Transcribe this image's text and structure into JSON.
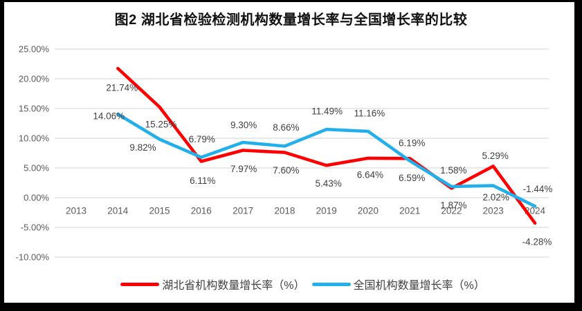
{
  "chart_data": {
    "type": "line",
    "title": "图2  湖北省检验检测机构数量增长率与全国增长率的比较",
    "categories": [
      "2013",
      "2014",
      "2015",
      "2016",
      "2017",
      "2018",
      "2019",
      "2020",
      "2021",
      "2022",
      "2023",
      "2024"
    ],
    "series": [
      {
        "name": "湖北省机构数量增长率（%）",
        "color": "#FE0000",
        "values": [
          null,
          21.74,
          15.25,
          6.11,
          7.97,
          7.6,
          5.43,
          6.64,
          6.59,
          1.58,
          5.29,
          -4.28
        ],
        "data_labels": [
          "",
          "21.74%",
          "15.25%",
          "6.11%",
          "7.97%",
          "7.60%",
          "5.43%",
          "6.64%",
          "6.59%",
          "1.58%",
          "5.29%",
          "-4.28%"
        ],
        "label_offsets": [
          [
            0,
            0
          ],
          [
            6,
            28
          ],
          [
            2,
            25
          ],
          [
            2,
            28
          ],
          [
            1,
            27
          ],
          [
            2,
            26
          ],
          [
            3,
            26
          ],
          [
            3,
            24
          ],
          [
            3,
            28
          ],
          [
            3,
            -26
          ],
          [
            3,
            -15
          ],
          [
            3,
            27
          ]
        ]
      },
      {
        "name": "全国机构数量增长率（%）",
        "color": "#23B0EA",
        "values": [
          null,
          14.06,
          9.82,
          6.79,
          9.3,
          8.66,
          11.49,
          11.16,
          6.19,
          1.87,
          2.02,
          -1.44
        ],
        "data_labels": [
          "",
          "14.06%",
          "9.82%",
          "6.79%",
          "9.30%",
          "8.66%",
          "11.49%",
          "11.16%",
          "6.19%",
          "1.87%",
          "2.02%",
          "-1.44%"
        ],
        "label_offsets": [
          [
            0,
            0
          ],
          [
            -13,
            3
          ],
          [
            -24,
            12
          ],
          [
            1,
            -26
          ],
          [
            1,
            -25
          ],
          [
            2,
            -27
          ],
          [
            1,
            -26
          ],
          [
            2,
            -26
          ],
          [
            3,
            -26
          ],
          [
            3,
            27
          ],
          [
            4,
            17
          ],
          [
            4,
            -25
          ]
        ]
      }
    ],
    "xlabel": "",
    "ylabel": "",
    "ylim": [
      -10,
      25
    ],
    "ytick_step": 5,
    "ytick_labels": [
      "25.00%",
      "20.00%",
      "15.00%",
      "10.00%",
      "5.00%",
      "0.00%",
      "-5.00%",
      "-10.00%"
    ],
    "grid": true,
    "legend_position": "bottom",
    "gridline_color": "#D9D9D9",
    "axis_label_color": "#595959",
    "data_label_color": "#3F3F3F"
  }
}
